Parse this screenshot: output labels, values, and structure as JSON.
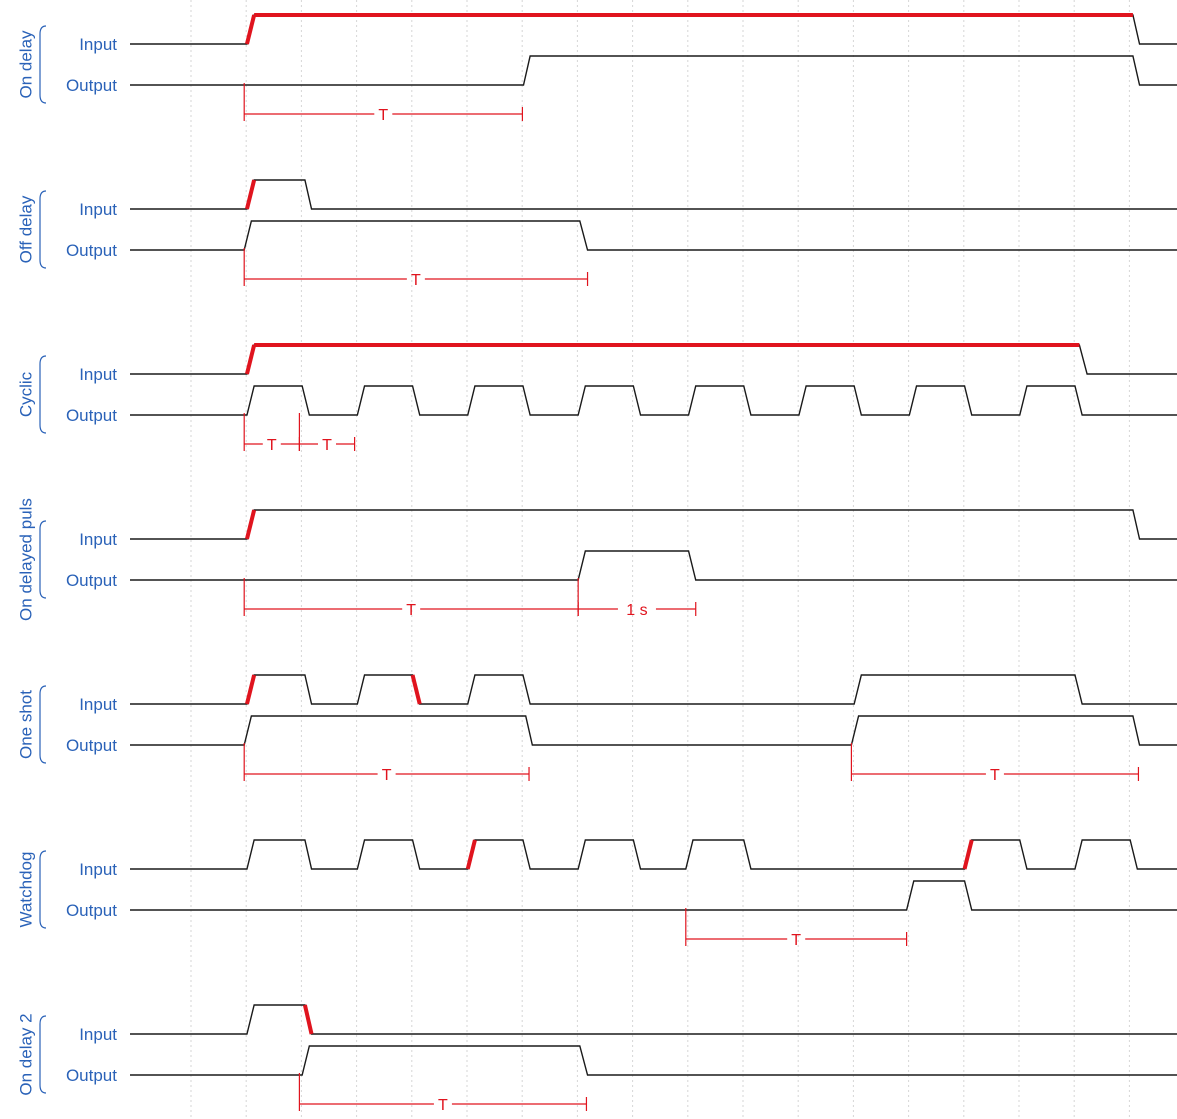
{
  "colors": {
    "signal": "#1a1a1a",
    "edge": "#e0141e",
    "label": "#2a62b8",
    "grid": "#d6d6d6"
  },
  "rows": [
    {
      "name": "On delay",
      "input_label": "Input",
      "output_label": "Output",
      "input": [
        [
          1,
          1.05
        ],
        [
          1,
          1.18
        ],
        [
          0,
          17.1
        ],
        [
          0,
          17.22
        ]
      ],
      "output": [
        [
          1,
          6.06
        ],
        [
          1,
          6.18
        ],
        [
          0,
          17.1
        ],
        [
          0,
          17.22
        ]
      ],
      "red_edges": [
        {
          "sig": "input",
          "index": 0
        },
        {
          "sig": "input",
          "index": 1
        }
      ],
      "dims": [
        {
          "from": 1,
          "to": 6.04,
          "label": "T"
        }
      ]
    },
    {
      "name": "Off delay",
      "input_label": "Input",
      "output_label": "Output",
      "input": [
        [
          1,
          1.05
        ],
        [
          1,
          1.18
        ],
        [
          0,
          2.1
        ],
        [
          0,
          2.22
        ]
      ],
      "output": [
        [
          1,
          1.0
        ],
        [
          1,
          1.13
        ],
        [
          0,
          7.08
        ],
        [
          0,
          7.22
        ]
      ],
      "red_edges": [
        {
          "sig": "input",
          "index": 0
        }
      ],
      "dims": [
        {
          "from": 1,
          "to": 7.22,
          "label": "T"
        }
      ]
    },
    {
      "name": "Cyclic",
      "input_label": "Input",
      "output_label": "Output",
      "input": [
        [
          1,
          1.05
        ],
        [
          1,
          1.18
        ],
        [
          0,
          16.13
        ],
        [
          0,
          16.27
        ]
      ],
      "output": [
        [
          1,
          1.05
        ],
        [
          1,
          1.18
        ],
        [
          0,
          2.05
        ],
        [
          0,
          2.18
        ],
        [
          1,
          3.05
        ],
        [
          1,
          3.18
        ],
        [
          0,
          4.05
        ],
        [
          0,
          4.18
        ],
        [
          1,
          5.05
        ],
        [
          1,
          5.18
        ],
        [
          0,
          6.05
        ],
        [
          0,
          6.18
        ],
        [
          1,
          7.05
        ],
        [
          1,
          7.18
        ],
        [
          0,
          8.05
        ],
        [
          0,
          8.18
        ],
        [
          1,
          9.05
        ],
        [
          1,
          9.18
        ],
        [
          0,
          10.05
        ],
        [
          0,
          10.18
        ],
        [
          1,
          11.05
        ],
        [
          1,
          11.18
        ],
        [
          0,
          12.05
        ],
        [
          0,
          12.18
        ],
        [
          1,
          13.05
        ],
        [
          1,
          13.18
        ],
        [
          0,
          14.05
        ],
        [
          0,
          14.18
        ],
        [
          1,
          15.05
        ],
        [
          1,
          15.18
        ],
        [
          0,
          16.05
        ],
        [
          0,
          16.18
        ]
      ],
      "red_edges": [
        {
          "sig": "input",
          "index": 0
        },
        {
          "sig": "input",
          "index": 1
        }
      ],
      "dims": [
        {
          "from": 1,
          "to": 2,
          "label": "T"
        },
        {
          "from": 2,
          "to": 3,
          "label": "T"
        }
      ]
    },
    {
      "name": "On delayed puls",
      "input_label": "Input",
      "output_label": "Output",
      "input": [
        [
          1,
          1.05
        ],
        [
          1,
          1.18
        ],
        [
          0,
          17.1
        ],
        [
          0,
          17.22
        ]
      ],
      "output": [
        [
          1,
          7.05
        ],
        [
          1,
          7.18
        ],
        [
          0,
          9.05
        ],
        [
          0,
          9.18
        ]
      ],
      "red_edges": [
        {
          "sig": "input",
          "index": 0
        }
      ],
      "dims": [
        {
          "from": 1,
          "to": 7.05,
          "label": "T"
        },
        {
          "from": 7.05,
          "to": 9.18,
          "label": "1 s"
        }
      ]
    },
    {
      "name": "One shot",
      "input_label": "Input",
      "output_label": "Output",
      "input": [
        [
          1,
          1.05
        ],
        [
          1,
          1.18
        ],
        [
          0,
          2.1
        ],
        [
          0,
          2.22
        ],
        [
          1,
          3.05
        ],
        [
          1,
          3.18
        ],
        [
          0,
          4.05
        ],
        [
          0,
          4.18
        ],
        [
          1,
          5.05
        ],
        [
          1,
          5.18
        ],
        [
          0,
          6.05
        ],
        [
          0,
          6.18
        ],
        [
          1,
          12.05
        ],
        [
          1,
          12.18
        ],
        [
          0,
          16.05
        ],
        [
          0,
          16.18
        ]
      ],
      "output": [
        [
          1,
          1.0
        ],
        [
          1,
          1.13
        ],
        [
          0,
          6.1
        ],
        [
          0,
          6.22
        ],
        [
          1,
          12.0
        ],
        [
          1,
          12.13
        ],
        [
          0,
          17.1
        ],
        [
          0,
          17.22
        ]
      ],
      "red_edges": [
        {
          "sig": "input",
          "index": 0
        },
        {
          "sig": "input",
          "index": 6
        }
      ],
      "dims": [
        {
          "from": 1,
          "to": 6.16,
          "label": "T"
        },
        {
          "from": 12,
          "to": 17.2,
          "label": "T"
        }
      ]
    },
    {
      "name": "Watchdog",
      "input_label": "Input",
      "output_label": "Output",
      "input": [
        [
          1,
          1.05
        ],
        [
          1,
          1.18
        ],
        [
          0,
          2.1
        ],
        [
          0,
          2.22
        ],
        [
          1,
          3.05
        ],
        [
          1,
          3.18
        ],
        [
          0,
          4.05
        ],
        [
          0,
          4.18
        ],
        [
          1,
          5.05
        ],
        [
          1,
          5.18
        ],
        [
          0,
          6.05
        ],
        [
          0,
          6.18
        ],
        [
          1,
          7.05
        ],
        [
          1,
          7.18
        ],
        [
          0,
          8.05
        ],
        [
          0,
          8.18
        ],
        [
          1,
          9.0
        ],
        [
          1,
          9.13
        ],
        [
          0,
          10.05
        ],
        [
          0,
          10.18
        ],
        [
          1,
          14.05
        ],
        [
          1,
          14.18
        ],
        [
          0,
          15.05
        ],
        [
          0,
          15.18
        ],
        [
          1,
          16.05
        ],
        [
          1,
          16.18
        ],
        [
          0,
          17.05
        ],
        [
          0,
          17.18
        ]
      ],
      "output": [
        [
          1,
          13.0
        ],
        [
          1,
          13.13
        ],
        [
          0,
          14.05
        ],
        [
          0,
          14.18
        ]
      ],
      "red_edges": [
        {
          "sig": "input",
          "index": 8
        },
        {
          "sig": "input",
          "index": 20
        }
      ],
      "dims": [
        {
          "from": 9,
          "to": 13,
          "label": "T"
        }
      ]
    },
    {
      "name": "On delay 2",
      "input_label": "Input",
      "output_label": "Output",
      "input": [
        [
          1,
          1.05
        ],
        [
          1,
          1.18
        ],
        [
          0,
          2.1
        ],
        [
          0,
          2.22
        ]
      ],
      "output": [
        [
          1,
          2.05
        ],
        [
          1,
          2.18
        ],
        [
          0,
          7.08
        ],
        [
          0,
          7.22
        ]
      ],
      "red_edges": [
        {
          "sig": "input",
          "index": 2
        }
      ],
      "dims": [
        {
          "from": 2,
          "to": 7.2,
          "label": "T"
        }
      ]
    }
  ]
}
